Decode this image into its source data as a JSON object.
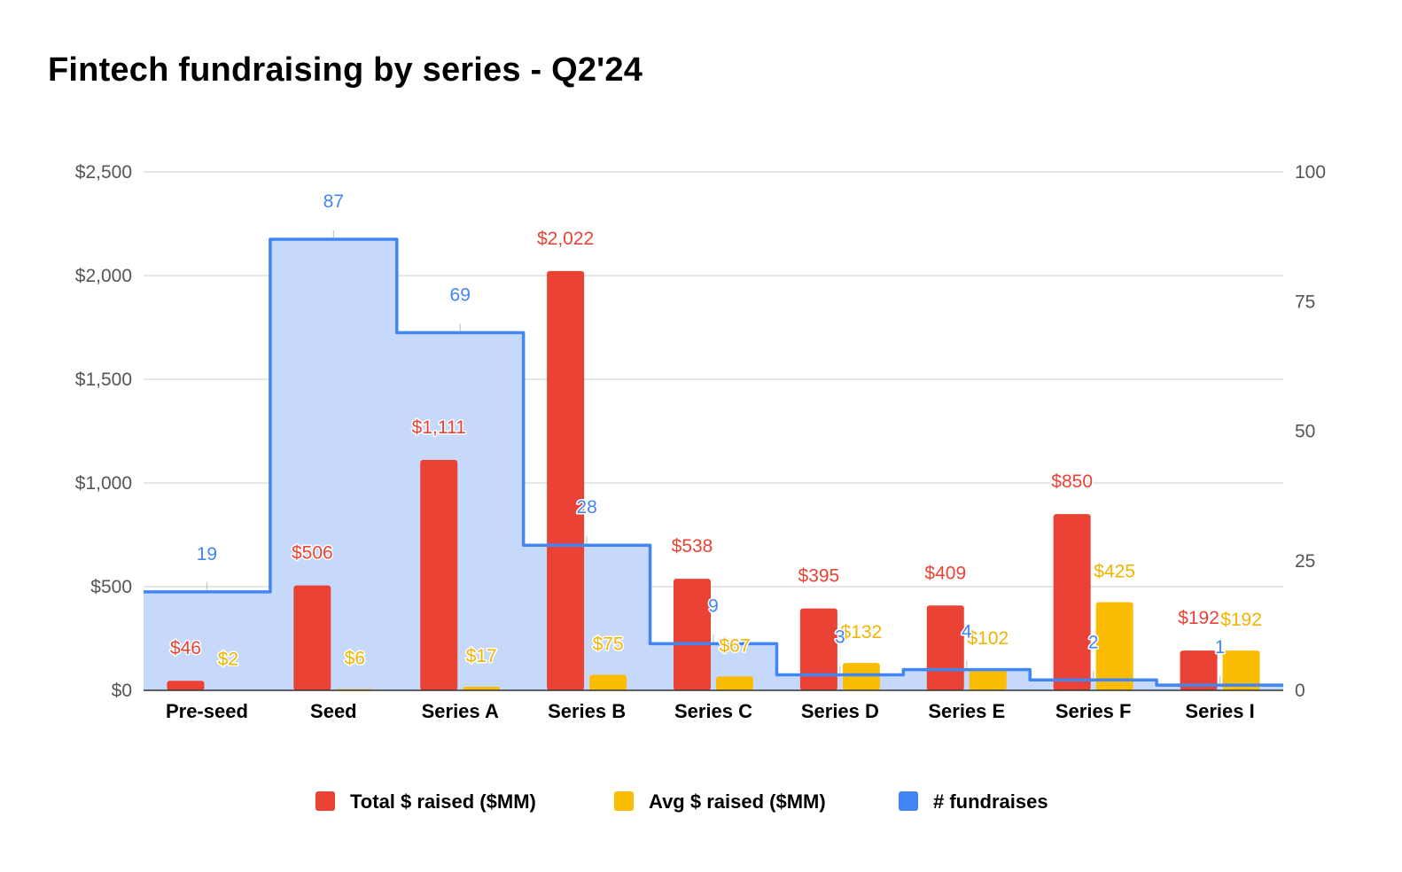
{
  "chart_data": {
    "type": "bar",
    "title": "Fintech fundraising by series - Q2'24",
    "categories": [
      "Pre-seed",
      "Seed",
      "Series A",
      "Series B",
      "Series C",
      "Series D",
      "Series E",
      "Series F",
      "Series I"
    ],
    "series": [
      {
        "name": "Total $ raised ($MM)",
        "type": "bar",
        "axis": "left",
        "color": "#ea4335",
        "values": [
          46,
          506,
          1111,
          2022,
          538,
          395,
          409,
          850,
          192
        ],
        "labels": [
          "$46",
          "$506",
          "$1,111",
          "$2,022",
          "$538",
          "$395",
          "$409",
          "$850",
          "$192"
        ]
      },
      {
        "name": "Avg $ raised ($MM)",
        "type": "bar",
        "axis": "left",
        "color": "#fbbc04",
        "values": [
          2,
          6,
          17,
          75,
          67,
          132,
          102,
          425,
          192
        ],
        "labels": [
          "$2",
          "$6",
          "$17",
          "$75",
          "$67",
          "$132",
          "$102",
          "$425",
          "$192"
        ]
      },
      {
        "name": "# fundraises",
        "type": "stepped-area",
        "axis": "right",
        "color": "#4285f4",
        "fill": "#c6d9fa",
        "values": [
          19,
          87,
          69,
          28,
          9,
          3,
          4,
          2,
          1
        ],
        "labels": [
          "19",
          "87",
          "69",
          "28",
          "9",
          "3",
          "4",
          "2",
          "1"
        ]
      }
    ],
    "left_axis": {
      "min": 0,
      "max": 2500,
      "ticks": [
        0,
        500,
        1000,
        1500,
        2000,
        2500
      ],
      "tick_labels": [
        "$0",
        "$500",
        "$1,000",
        "$1,500",
        "$2,000",
        "$2,500"
      ]
    },
    "right_axis": {
      "min": 0,
      "max": 100,
      "ticks": [
        0,
        25,
        50,
        75,
        100
      ],
      "tick_labels": [
        "0",
        "25",
        "50",
        "75",
        "100"
      ]
    },
    "grid": true,
    "legend_position": "bottom"
  }
}
